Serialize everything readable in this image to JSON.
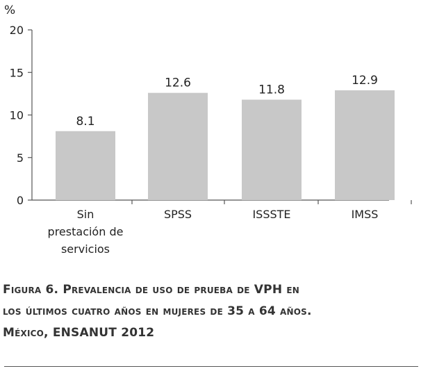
{
  "chart_data": {
    "type": "bar",
    "unit_label": "%",
    "categories": [
      [
        "Sin",
        "prestación de",
        "servicios"
      ],
      [
        "SPSS"
      ],
      [
        "ISSSTE"
      ],
      [
        "IMSS"
      ]
    ],
    "values": [
      8.1,
      12.6,
      11.8,
      12.9
    ],
    "value_labels": [
      "8.1",
      "12.6",
      "11.8",
      "12.9"
    ],
    "ylim": [
      0,
      20
    ],
    "yticks": [
      0,
      5,
      10,
      15,
      20
    ],
    "grid": false,
    "bar_color": "#c8c8c8",
    "axis_color": "#555555"
  },
  "caption": {
    "line1": "Figura 6. Prevalencia de uso de prueba de VPH en",
    "line2": "los últimos cuatro años en mujeres de 35 a 64 años.",
    "line3": "México, ENSANUT 2012"
  }
}
